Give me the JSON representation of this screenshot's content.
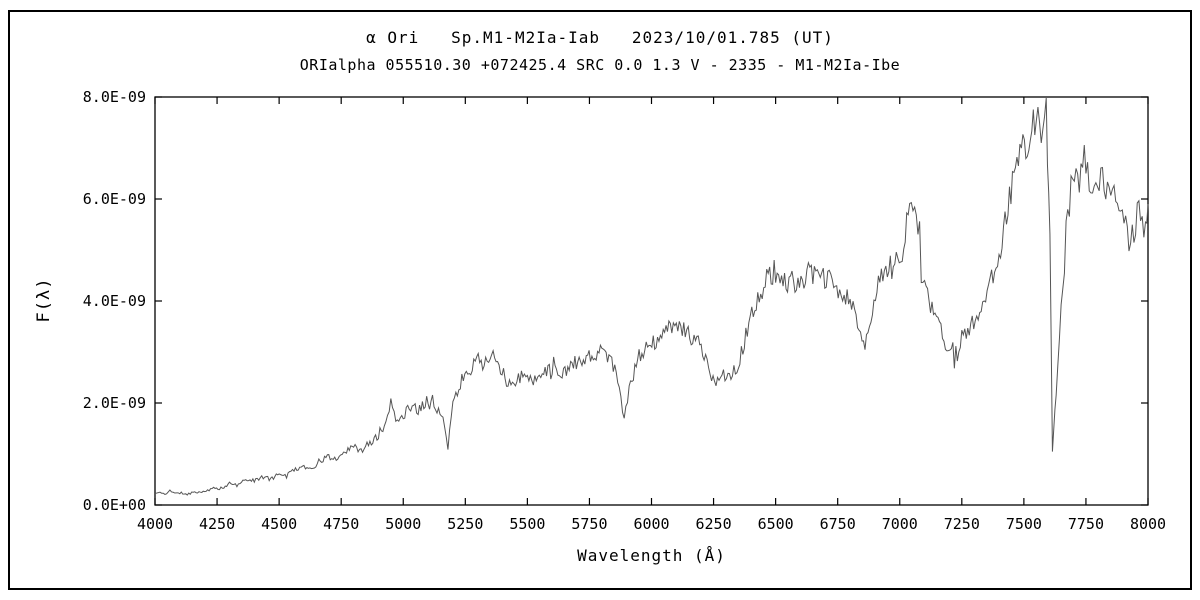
{
  "figure": {
    "title": "α Ori   Sp.M1-M2Ia-Iab   2023/10/01.785 (UT)",
    "subtitle": "ORIalpha 055510.30 +072425.4 SRC 0.0 1.3 V - 2335 - M1-M2Ia-Ibe"
  },
  "chart_data": {
    "type": "line",
    "title": "α Ori   Sp.M1-M2Ia-Iab   2023/10/01.785 (UT)",
    "subtitle": "ORIalpha 055510.30 +072425.4 SRC 0.0 1.3 V - 2335 - M1-M2Ia-Ibe",
    "xlabel": "Wavelength (Å)",
    "ylabel": "F(λ)",
    "xlim": [
      4000,
      8000
    ],
    "ylim": [
      0,
      8
    ],
    "flux_scale": "1e-9",
    "grid": false,
    "legend": "none",
    "line_color": "#555555",
    "x_ticks": [
      4000,
      4250,
      4500,
      4750,
      5000,
      5250,
      5500,
      5750,
      6000,
      6250,
      6500,
      6750,
      7000,
      7250,
      7500,
      7750,
      8000
    ],
    "y_ticks": [
      {
        "label": "0.0E+00",
        "value": 0
      },
      {
        "label": "2.0E-09",
        "value": 2
      },
      {
        "label": "4.0E-09",
        "value": 4
      },
      {
        "label": "6.0E-09",
        "value": 6
      },
      {
        "label": "8.0E-09",
        "value": 8
      }
    ],
    "noise": {
      "seed": 11,
      "step_A": 6,
      "base": 0.01,
      "scale": 0.05
    },
    "points": [
      [
        4000,
        0.22
      ],
      [
        4020,
        0.25
      ],
      [
        4040,
        0.2
      ],
      [
        4060,
        0.3
      ],
      [
        4080,
        0.22
      ],
      [
        4100,
        0.24
      ],
      [
        4130,
        0.21
      ],
      [
        4160,
        0.26
      ],
      [
        4200,
        0.25
      ],
      [
        4230,
        0.33
      ],
      [
        4260,
        0.3
      ],
      [
        4300,
        0.42
      ],
      [
        4330,
        0.38
      ],
      [
        4360,
        0.5
      ],
      [
        4400,
        0.48
      ],
      [
        4430,
        0.55
      ],
      [
        4460,
        0.52
      ],
      [
        4500,
        0.62
      ],
      [
        4530,
        0.58
      ],
      [
        4560,
        0.7
      ],
      [
        4600,
        0.75
      ],
      [
        4630,
        0.68
      ],
      [
        4660,
        0.85
      ],
      [
        4700,
        0.95
      ],
      [
        4730,
        0.88
      ],
      [
        4760,
        1.05
      ],
      [
        4800,
        1.15
      ],
      [
        4830,
        1.05
      ],
      [
        4860,
        1.2
      ],
      [
        4900,
        1.35
      ],
      [
        4930,
        1.55
      ],
      [
        4950,
        2.0
      ],
      [
        4970,
        1.7
      ],
      [
        5000,
        1.75
      ],
      [
        5030,
        1.95
      ],
      [
        5060,
        1.85
      ],
      [
        5100,
        2.1
      ],
      [
        5130,
        1.95
      ],
      [
        5160,
        1.7
      ],
      [
        5180,
        1.1
      ],
      [
        5200,
        2.0
      ],
      [
        5230,
        2.35
      ],
      [
        5260,
        2.55
      ],
      [
        5290,
        2.9
      ],
      [
        5320,
        2.75
      ],
      [
        5350,
        3.0
      ],
      [
        5380,
        2.7
      ],
      [
        5410,
        2.55
      ],
      [
        5440,
        2.3
      ],
      [
        5470,
        2.5
      ],
      [
        5500,
        2.55
      ],
      [
        5530,
        2.45
      ],
      [
        5560,
        2.65
      ],
      [
        5600,
        2.7
      ],
      [
        5640,
        2.55
      ],
      [
        5680,
        2.75
      ],
      [
        5720,
        2.85
      ],
      [
        5760,
        2.95
      ],
      [
        5800,
        3.0
      ],
      [
        5840,
        2.85
      ],
      [
        5870,
        2.4
      ],
      [
        5890,
        1.65
      ],
      [
        5910,
        2.3
      ],
      [
        5950,
        2.9
      ],
      [
        5990,
        3.1
      ],
      [
        6030,
        3.25
      ],
      [
        6070,
        3.45
      ],
      [
        6100,
        3.55
      ],
      [
        6130,
        3.4
      ],
      [
        6160,
        3.3
      ],
      [
        6200,
        3.2
      ],
      [
        6230,
        2.6
      ],
      [
        6260,
        2.45
      ],
      [
        6290,
        2.55
      ],
      [
        6320,
        2.6
      ],
      [
        6350,
        2.75
      ],
      [
        6380,
        3.3
      ],
      [
        6410,
        3.8
      ],
      [
        6440,
        4.15
      ],
      [
        6470,
        4.5
      ],
      [
        6500,
        4.6
      ],
      [
        6530,
        4.3
      ],
      [
        6560,
        4.45
      ],
      [
        6590,
        4.35
      ],
      [
        6620,
        4.5
      ],
      [
        6650,
        4.55
      ],
      [
        6680,
        4.4
      ],
      [
        6710,
        4.45
      ],
      [
        6740,
        4.25
      ],
      [
        6770,
        4.1
      ],
      [
        6800,
        4.0
      ],
      [
        6830,
        3.6
      ],
      [
        6860,
        3.05
      ],
      [
        6890,
        3.9
      ],
      [
        6920,
        4.4
      ],
      [
        6950,
        4.55
      ],
      [
        6980,
        4.75
      ],
      [
        7010,
        5.0
      ],
      [
        7040,
        6.05
      ],
      [
        7060,
        5.6
      ],
      [
        7080,
        5.1
      ],
      [
        7100,
        4.2
      ],
      [
        7130,
        3.8
      ],
      [
        7160,
        3.5
      ],
      [
        7190,
        3.05
      ],
      [
        7220,
        2.95
      ],
      [
        7250,
        3.3
      ],
      [
        7280,
        3.45
      ],
      [
        7310,
        3.65
      ],
      [
        7340,
        4.1
      ],
      [
        7370,
        4.4
      ],
      [
        7400,
        4.9
      ],
      [
        7430,
        5.8
      ],
      [
        7460,
        6.5
      ],
      [
        7490,
        6.9
      ],
      [
        7520,
        7.2
      ],
      [
        7550,
        7.55
      ],
      [
        7570,
        7.35
      ],
      [
        7590,
        7.6
      ],
      [
        7605,
        5.5
      ],
      [
        7615,
        1.05
      ],
      [
        7630,
        2.2
      ],
      [
        7650,
        3.9
      ],
      [
        7670,
        5.2
      ],
      [
        7690,
        6.2
      ],
      [
        7710,
        6.35
      ],
      [
        7730,
        6.5
      ],
      [
        7750,
        6.6
      ],
      [
        7770,
        6.4
      ],
      [
        7790,
        6.3
      ],
      [
        7810,
        6.45
      ],
      [
        7830,
        6.2
      ],
      [
        7850,
        6.25
      ],
      [
        7870,
        6.05
      ],
      [
        7890,
        5.9
      ],
      [
        7910,
        5.4
      ],
      [
        7930,
        5.15
      ],
      [
        7950,
        5.55
      ],
      [
        7970,
        5.8
      ],
      [
        7990,
        5.7
      ],
      [
        8000,
        5.9
      ]
    ]
  }
}
